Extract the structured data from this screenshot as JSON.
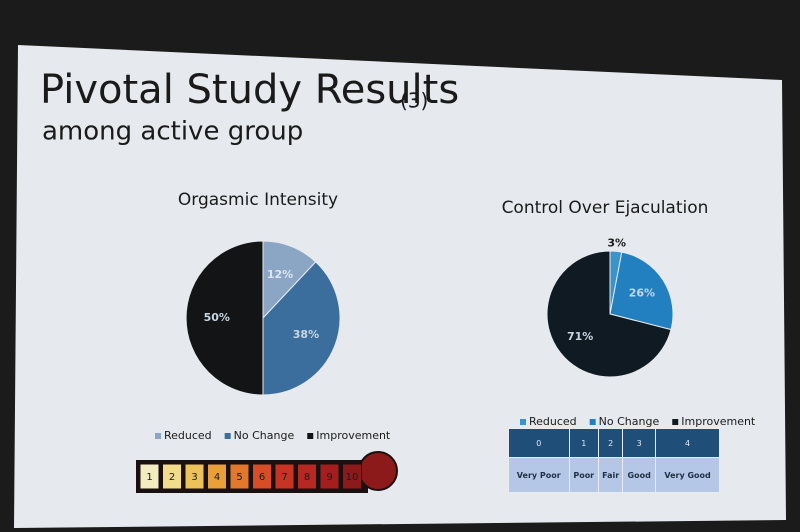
{
  "slide": {
    "title": "Pivotal Study Results",
    "title_note": "(3)",
    "subtitle": "among active group"
  },
  "chart_data": [
    {
      "type": "pie",
      "title": "Orgasmic Intensity",
      "categories": [
        "Reduced",
        "No Change",
        "Improvement"
      ],
      "values": [
        12,
        38,
        50
      ],
      "value_labels": [
        "12%",
        "38%",
        "50%"
      ],
      "colors": [
        "#8aa6c4",
        "#3b6e9c",
        "#121416"
      ]
    },
    {
      "type": "pie",
      "title": "Control Over Ejaculation",
      "categories": [
        "Reduced",
        "No Change",
        "Improvement"
      ],
      "values": [
        3,
        26,
        71
      ],
      "value_labels": [
        "3%",
        "26%",
        "71%"
      ],
      "colors": [
        "#3a94cc",
        "#2380c0",
        "#0f1a22"
      ]
    }
  ],
  "scales": {
    "intensity": {
      "levels": [
        1,
        2,
        3,
        4,
        5,
        6,
        7,
        8,
        9,
        10
      ],
      "colors": [
        "#f3ecc0",
        "#f1dc8c",
        "#eec25a",
        "#e9a03a",
        "#e2782c",
        "#d94d26",
        "#c83424",
        "#b82822",
        "#a41e1e",
        "#8c1a1a"
      ]
    },
    "control": {
      "levels": [
        0,
        1,
        2,
        3,
        4
      ],
      "labels": [
        "Very Poor",
        "Poor",
        "Fair",
        "Good",
        "Very Good"
      ]
    }
  }
}
